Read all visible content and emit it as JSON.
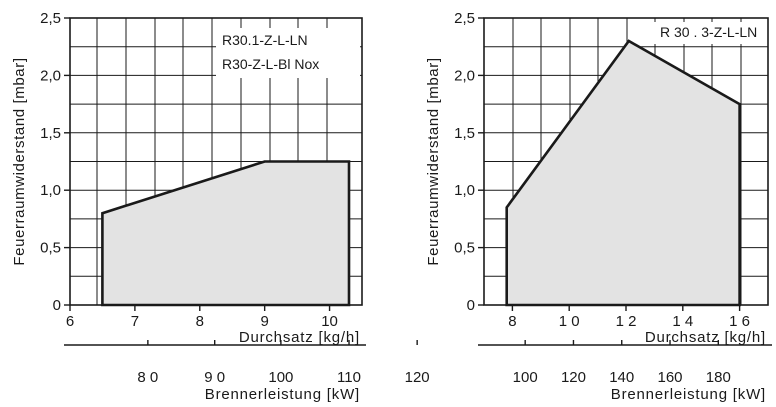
{
  "chart_data": [
    {
      "type": "area",
      "ylabel": "Feuerraumwiderstand [mbar]",
      "xlabel": "Durchsatz  [kg/h]",
      "x2label": "Brennerleistung  [kW]",
      "legend": [
        "R30.1-Z-L-LN",
        "R30-Z-L-Bl Nox"
      ],
      "xlim": [
        6,
        10.5
      ],
      "ylim": [
        0,
        2.5
      ],
      "x_ticks": [
        "6",
        "7",
        "8",
        "9",
        "10"
      ],
      "y_ticks": [
        "0",
        "0,5",
        "1,0",
        "1,5",
        "2,0",
        "2,5"
      ],
      "x2_ticks": [
        "8 0",
        "9 0",
        "100",
        "110",
        "120"
      ],
      "x2_tick_positions": [
        7.2,
        8.23,
        9.25,
        10.3,
        11.35
      ],
      "x2_axis_xlim": [
        6,
        10.5
      ],
      "polygon": [
        {
          "x": 6.5,
          "y": 0
        },
        {
          "x": 6.5,
          "y": 0.8
        },
        {
          "x": 9.0,
          "y": 1.25
        },
        {
          "x": 10.3,
          "y": 1.25
        },
        {
          "x": 10.3,
          "y": 0
        }
      ],
      "grid": true,
      "legend_position": "top-right"
    },
    {
      "type": "area",
      "ylabel": "Feuerraumwiderstand [mbar]",
      "xlabel": "Durchsatz  [kg/h]",
      "x2label": "Brennerleistung  [kW]",
      "legend": [
        "R 30 . 3-Z-L-LN"
      ],
      "xlim": [
        7,
        17
      ],
      "ylim": [
        0,
        2.5
      ],
      "x_ticks": [
        "8",
        "1 0",
        "1 2",
        "1 4",
        "1 6"
      ],
      "x_tick_values": [
        8,
        10,
        12,
        14,
        16
      ],
      "y_ticks": [
        "0",
        "0,5",
        "1,0",
        "1,5",
        "2,0",
        "2,5"
      ],
      "x2_ticks": [
        "100",
        "120",
        "140",
        "160",
        "180"
      ],
      "x2_tick_positions": [
        8.45,
        10.15,
        11.85,
        13.55,
        15.25
      ],
      "polygon": [
        {
          "x": 7.8,
          "y": 0
        },
        {
          "x": 7.8,
          "y": 0.85
        },
        {
          "x": 12.1,
          "y": 2.3
        },
        {
          "x": 16.0,
          "y": 1.75
        },
        {
          "x": 16.0,
          "y": 0
        }
      ],
      "grid": true,
      "legend_position": "top-right"
    }
  ]
}
